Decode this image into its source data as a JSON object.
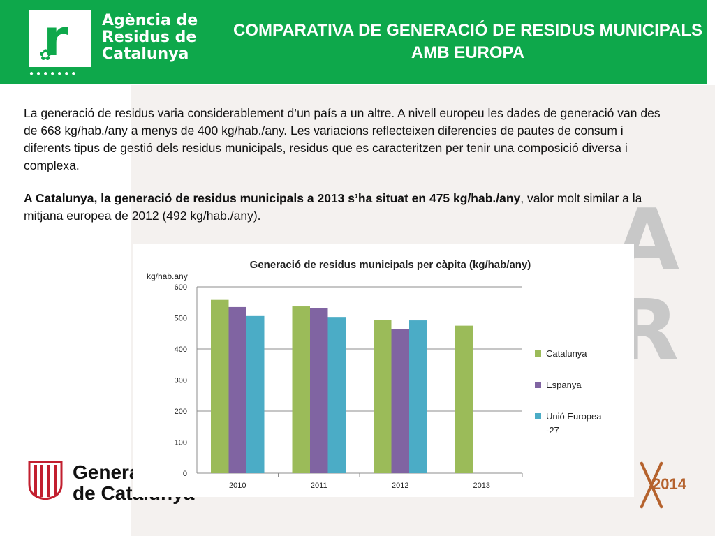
{
  "header": {
    "org_line1": "Agència de",
    "org_line2": "Residus de",
    "org_line3": "Catalunya",
    "logo_letter": "r",
    "title": "COMPARATIVA DE GENERACIÓ DE RESIDUS MUNICIPALS AMB EUROPA"
  },
  "intro": {
    "paragraph1": "La generació de residus varia considerablement d’un país a un altre. A nivell europeu les dades de generació van des de 668 kg/hab./any a menys de 400 kg/hab./any. Les variacions reflecteixen diferencies de pautes de consum i diferents tipus de gestió dels residus municipals, residus que es caracteritzen per tenir una composició diversa i complexa.",
    "paragraph2_bold": "A Catalunya, la generació de residus municipals a 2013 s’ha situat en 475 kg/hab./any",
    "paragraph2_rest": ", valor molt similar a la mitjana europea de 2012 (492 kg/hab./any)."
  },
  "footer": {
    "gen_line1": "Generalitat",
    "gen_line2": "de Catalunya",
    "anniversary": "2014"
  },
  "colors": {
    "header_green": "#0ea84b",
    "catalunya": "#9bbb59",
    "espanya": "#8064a2",
    "ue27": "#4bacc6"
  },
  "chart_data": {
    "type": "bar",
    "title": "Generació de residus municipals per càpita (kg/hab/any)",
    "ylabel": "kg/hab.any",
    "xlabel": "",
    "categories": [
      "2010",
      "2011",
      "2012",
      "2013"
    ],
    "ylim": [
      0,
      600
    ],
    "yticks": [
      0,
      100,
      200,
      300,
      400,
      500,
      600
    ],
    "grid": true,
    "legend_position": "right",
    "series": [
      {
        "name": "Catalunya",
        "color": "#9bbb59",
        "values": [
          558,
          537,
          493,
          475
        ]
      },
      {
        "name": "Espanya",
        "color": "#8064a2",
        "values": [
          535,
          531,
          464,
          null
        ]
      },
      {
        "name": "Unió Europea -27",
        "color": "#4bacc6",
        "values": [
          506,
          503,
          492,
          null
        ]
      }
    ]
  }
}
